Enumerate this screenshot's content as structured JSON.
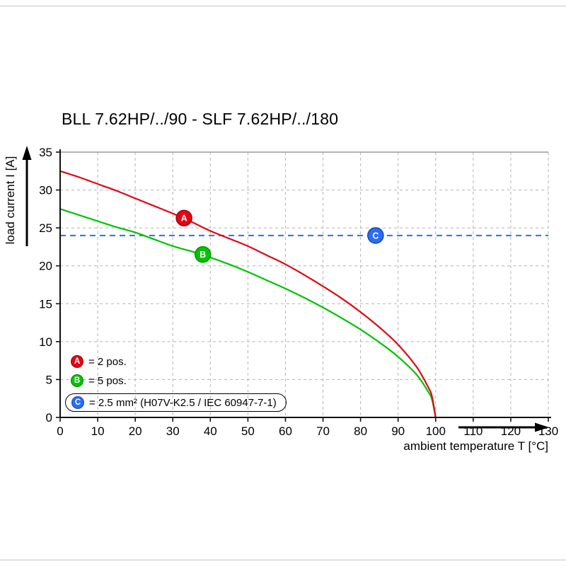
{
  "page": {
    "title": "BLL 7.62HP/../90 - SLF 7.62HP/../180"
  },
  "chart_data": {
    "type": "line",
    "title": "BLL 7.62HP/../90 - SLF 7.62HP/../180",
    "xlabel": "ambient temperature T [°C]",
    "ylabel": "load current I [A]",
    "xlim": [
      0,
      130
    ],
    "ylim": [
      0,
      35
    ],
    "x_ticks": [
      0,
      10,
      20,
      30,
      40,
      50,
      60,
      70,
      80,
      90,
      100,
      110,
      120,
      130
    ],
    "y_ticks": [
      0,
      5,
      10,
      15,
      20,
      25,
      30,
      35
    ],
    "grid": "dashed",
    "grid_color": "#b3b3b3",
    "axis_color": "#111111",
    "legend_position": "lower-left-inside",
    "reference_line": {
      "y": 24,
      "color": "#2a6df5",
      "style": "dashed"
    },
    "series": [
      {
        "name": "A",
        "label": "2 pos.",
        "color": "#e30613",
        "points": [
          [
            0,
            32.5
          ],
          [
            5,
            31.7
          ],
          [
            10,
            30.8
          ],
          [
            15,
            29.9
          ],
          [
            20,
            28.9
          ],
          [
            25,
            27.9
          ],
          [
            30,
            26.9
          ],
          [
            35,
            25.8
          ],
          [
            40,
            24.6
          ],
          [
            45,
            23.6
          ],
          [
            50,
            22.6
          ],
          [
            55,
            21.4
          ],
          [
            60,
            20.2
          ],
          [
            65,
            18.8
          ],
          [
            70,
            17.3
          ],
          [
            75,
            15.7
          ],
          [
            80,
            13.9
          ],
          [
            85,
            11.9
          ],
          [
            90,
            9.6
          ],
          [
            95,
            6.6
          ],
          [
            98,
            4.0
          ],
          [
            99,
            2.8
          ],
          [
            100,
            0
          ]
        ]
      },
      {
        "name": "B",
        "label": "5 pos.",
        "color": "#00c400",
        "points": [
          [
            0,
            27.5
          ],
          [
            5,
            26.7
          ],
          [
            10,
            25.9
          ],
          [
            15,
            25.1
          ],
          [
            20,
            24.4
          ],
          [
            25,
            23.5
          ],
          [
            30,
            22.6
          ],
          [
            35,
            21.9
          ],
          [
            40,
            21.1
          ],
          [
            45,
            20.2
          ],
          [
            50,
            19.2
          ],
          [
            55,
            18.1
          ],
          [
            60,
            17.0
          ],
          [
            65,
            15.8
          ],
          [
            70,
            14.5
          ],
          [
            75,
            13.1
          ],
          [
            80,
            11.6
          ],
          [
            85,
            9.9
          ],
          [
            90,
            8.0
          ],
          [
            95,
            5.6
          ],
          [
            98,
            3.4
          ],
          [
            99,
            2.4
          ],
          [
            100,
            0
          ]
        ]
      }
    ],
    "markers": [
      {
        "key": "A",
        "x": 33,
        "y": 26.3,
        "color": "#e30613",
        "ring": "#a50010"
      },
      {
        "key": "B",
        "x": 38,
        "y": 21.5,
        "color": "#00c400",
        "ring": "#009400"
      },
      {
        "key": "C",
        "x": 84,
        "y": 24.0,
        "color": "#2a6df5",
        "ring": "#1548b0"
      }
    ],
    "legend": [
      {
        "key": "A",
        "color": "#e30613",
        "label": "= 2 pos.",
        "boxed": false
      },
      {
        "key": "B",
        "color": "#00c400",
        "label": "= 5 pos.",
        "boxed": false
      },
      {
        "key": "C",
        "color": "#2a6df5",
        "label": "= 2.5 mm² (H07V-K2.5 / IEC 60947-7-1)",
        "boxed": true
      }
    ]
  }
}
